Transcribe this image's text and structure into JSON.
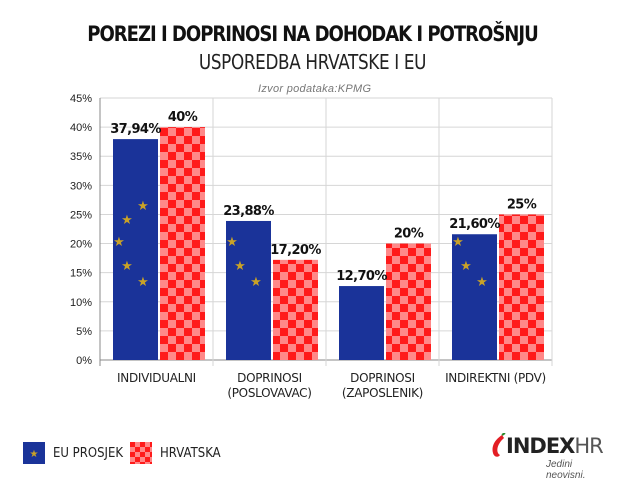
{
  "header": {
    "title": "POREZI I DOPRINOSI NA DOHODAK I POTROŠNJU",
    "subtitle": "USPOREDBA HRVATSKE I EU",
    "source": "Izvor podataka:KPMG"
  },
  "chart_data": {
    "type": "bar",
    "categories": [
      [
        "INDIVIDUALNI"
      ],
      [
        "DOPRINOSI",
        "(POSLOVAVAC)"
      ],
      [
        "DOPRINOSI",
        "(ZAPOSLENIK)"
      ],
      [
        "INDIREKTNI (PDV)"
      ]
    ],
    "series": [
      {
        "name": "EU PROSJEK",
        "values": [
          37.94,
          23.88,
          12.7,
          21.6
        ],
        "labels": [
          "37,94%",
          "23,88%",
          "12,70%",
          "21,60%"
        ],
        "color": "#1a3399"
      },
      {
        "name": "HRVATSKA",
        "values": [
          40,
          17.2,
          20,
          25
        ],
        "labels": [
          "40%",
          "17,20%",
          "20%",
          "25%"
        ],
        "color": "#ff1a1a"
      }
    ],
    "ylim": [
      0,
      45
    ],
    "yticks": [
      "0%",
      "5%",
      "10%",
      "15%",
      "20%",
      "25%",
      "30%",
      "35%",
      "40%",
      "45%"
    ],
    "grid": true,
    "legend": "bottom-left"
  },
  "footer": {
    "brand_main": "INDEX",
    "brand_suffix": "HR",
    "slogan": "Jedini neovisni."
  },
  "colors": {
    "eu_blue": "#1a3399",
    "star_gold": "#c9a227",
    "checker_red": "#ff1a1a",
    "checker_pink": "#ff8888"
  }
}
